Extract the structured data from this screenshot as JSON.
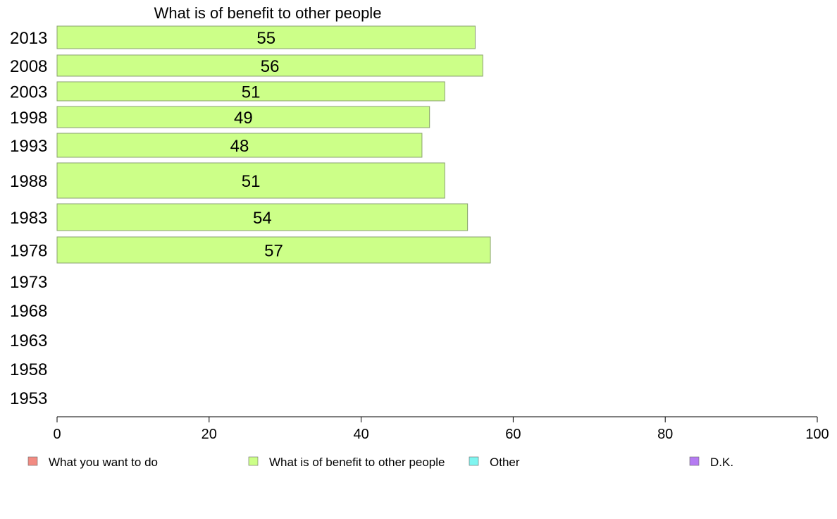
{
  "chart_data": {
    "type": "bar",
    "orientation": "horizontal",
    "title": "What is of benefit to other people",
    "categories": [
      "2013",
      "2008",
      "2003",
      "1998",
      "1993",
      "1988",
      "1983",
      "1978",
      "1973",
      "1968",
      "1963",
      "1958",
      "1953"
    ],
    "series": [
      {
        "name": "What is of benefit to other people",
        "color": "#ccff88",
        "values": [
          55,
          56,
          51,
          49,
          48,
          51,
          54,
          57,
          null,
          null,
          null,
          null,
          null
        ]
      }
    ],
    "xlim": [
      0,
      100
    ],
    "xticks": [
      0,
      20,
      40,
      60,
      80,
      100
    ],
    "grid": false,
    "legend": {
      "position": "bottom",
      "entries": [
        {
          "label": "What you want to do",
          "color": "#f28b82"
        },
        {
          "label": "What is of benefit to other people",
          "color": "#ccff88"
        },
        {
          "label": "Other",
          "color": "#7ff5f0"
        },
        {
          "label": "D.K.",
          "color": "#b57bf2"
        }
      ]
    }
  }
}
